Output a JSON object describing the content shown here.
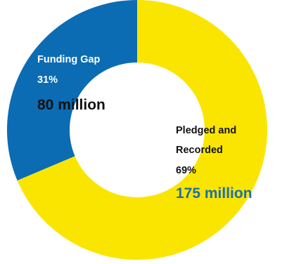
{
  "chart_data": {
    "type": "pie",
    "style": "donut",
    "slices": [
      {
        "label_lines": [
          "Funding Gap"
        ],
        "percent_label": "31%",
        "amount_label": "80 million",
        "value": 80,
        "percent": 31,
        "color": "#0b6cb4",
        "label_color": "#ffffff",
        "amount_color": "#111111"
      },
      {
        "label_lines": [
          "Pledged and",
          "Recorded"
        ],
        "percent_label": "69%",
        "amount_label": "175 million",
        "value": 175,
        "percent": 69,
        "color": "#fae500",
        "label_color": "#111111",
        "amount_color": "#1a6fb0"
      }
    ],
    "start_angle_deg": 0,
    "direction": "counterclockwise",
    "hole_color": "#ffffff"
  }
}
